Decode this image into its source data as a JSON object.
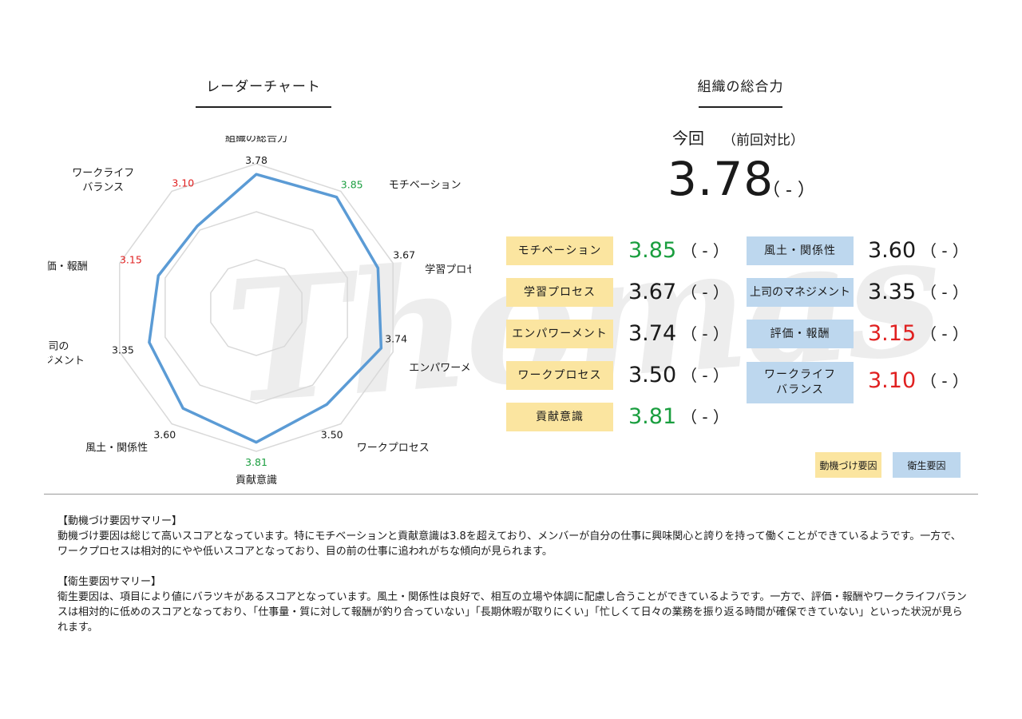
{
  "left_title": "レーダーチャート",
  "right_title": "組織の総合力",
  "overall": {
    "current_label": "今回",
    "prev_label": "（前回対比）",
    "score": "3.78",
    "delta": "（ - ）"
  },
  "chart_data": {
    "type": "radar",
    "title": "",
    "range": [
      1,
      4
    ],
    "axes": [
      {
        "label": "組織の総合力",
        "value": 3.78,
        "color": "#1a1a1a"
      },
      {
        "label": "モチベーション",
        "value": 3.85,
        "color": "#1a9e3f"
      },
      {
        "label": "学習プロセス",
        "value": 3.67,
        "color": "#1a1a1a"
      },
      {
        "label": "エンパワーメント",
        "value": 3.74,
        "color": "#1a1a1a"
      },
      {
        "label": "ワークプロセス",
        "value": 3.5,
        "color": "#1a1a1a"
      },
      {
        "label": "貢献意識",
        "value": 3.81,
        "color": "#1a9e3f"
      },
      {
        "label": "風土・関係性",
        "value": 3.6,
        "color": "#1a1a1a"
      },
      {
        "label": "上司の\nマネジメント",
        "value": 3.35,
        "color": "#1a1a1a"
      },
      {
        "label": "評価・報酬",
        "value": 3.15,
        "color": "#e02020"
      },
      {
        "label": "ワークライフ\nバランス",
        "value": 3.1,
        "color": "#e02020"
      }
    ],
    "series_color": "#5b9bd5",
    "value_labels": [
      "3.78",
      "3.85",
      "3.67",
      "3.74",
      "3.50",
      "3.81",
      "3.60",
      "3.35",
      "3.15",
      "3.10"
    ]
  },
  "motivation_factors": [
    {
      "label": "モチベーション",
      "value": "3.85",
      "delta": "（ - ）",
      "color": "#1a9e3f"
    },
    {
      "label": "学習プロセス",
      "value": "3.67",
      "delta": "（ - ）",
      "color": "#1a1a1a"
    },
    {
      "label": "エンパワーメント",
      "value": "3.74",
      "delta": "（ - ）",
      "color": "#1a1a1a"
    },
    {
      "label": "ワークプロセス",
      "value": "3.50",
      "delta": "（ - ）",
      "color": "#1a1a1a"
    },
    {
      "label": "貢献意識",
      "value": "3.81",
      "delta": "（ - ）",
      "color": "#1a9e3f"
    }
  ],
  "hygiene_factors": [
    {
      "label": "風土・関係性",
      "value": "3.60",
      "delta": "（ - ）",
      "color": "#1a1a1a"
    },
    {
      "label": "上司のマネジメント",
      "value": "3.35",
      "delta": "（ - ）",
      "color": "#1a1a1a"
    },
    {
      "label": "評価・報酬",
      "value": "3.15",
      "delta": "（ - ）",
      "color": "#e02020"
    },
    {
      "label": "ワークライフ\nバランス",
      "value": "3.10",
      "delta": "（ - ）",
      "color": "#e02020"
    }
  ],
  "legend": {
    "motivation": "動機づけ要因",
    "hygiene": "衛生要因"
  },
  "colors": {
    "motivation_bg": "#fbe5a0",
    "hygiene_bg": "#bdd7ee"
  },
  "watermark": "Thomas",
  "summary": {
    "motivation_heading": "【動機づけ要因サマリー】",
    "motivation_text": "動機づけ要因は総じて高いスコアとなっています。特にモチベーションと貢献意識は3.8を超えており、メンバーが自分の仕事に興味関心と誇りを持って働くことができているようです。一方で、ワークプロセスは相対的にやや低いスコアとなっており、目の前の仕事に追われがちな傾向が見られます。",
    "hygiene_heading": "【衛生要因サマリー】",
    "hygiene_text": "衛生要因は、項目により値にバラツキがあるスコアとなっています。風土・関係性は良好で、相互の立場や体調に配慮し合うことができているようです。一方で、評価・報酬やワークライフバランスは相対的に低めのスコアとなっており、「仕事量・質に対して報酬が釣り合っていない」「長期休暇が取りにくい」「忙しくて日々の業務を振り返る時間が確保できていない」といった状況が見られます。"
  }
}
